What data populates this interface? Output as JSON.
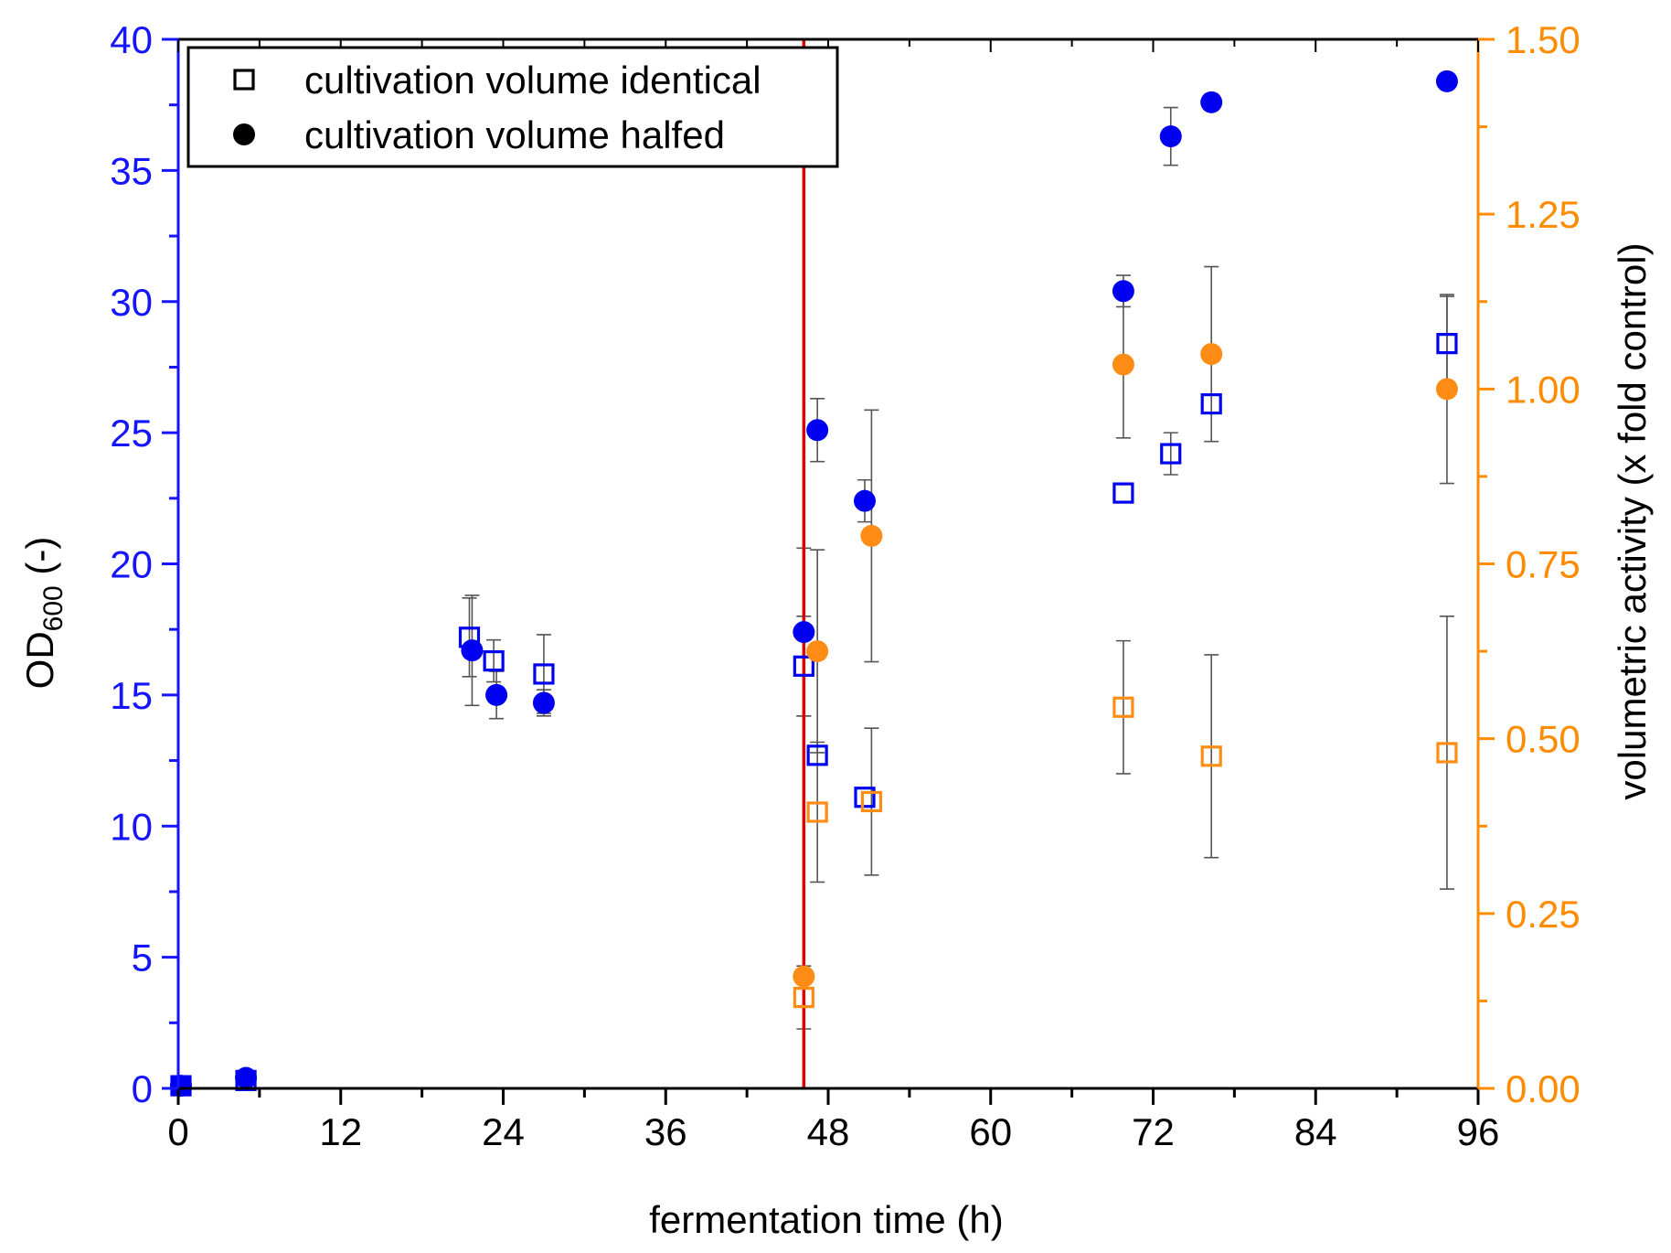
{
  "chart_data": {
    "type": "scatter",
    "xlabel": "fermentation time (h)",
    "ylabel_left": {
      "main": "OD",
      "sub": "600",
      "suffix": " (-)"
    },
    "ylabel_right": "volumetric activity (x fold control)",
    "xlim": [
      0,
      96
    ],
    "ylim_left": [
      0,
      40
    ],
    "ylim_right": [
      0,
      1.5
    ],
    "xticks": [
      "0",
      "12",
      "24",
      "36",
      "48",
      "60",
      "72",
      "84",
      "96"
    ],
    "yticks_left": [
      "0",
      "5",
      "10",
      "15",
      "20",
      "25",
      "30",
      "35",
      "40"
    ],
    "yticks_right": [
      "0.00",
      "0.25",
      "0.50",
      "0.75",
      "1.00",
      "1.25",
      "1.50"
    ],
    "vline_x": 46.2,
    "legend": [
      {
        "marker": "square-open",
        "label": "cultivation volume identical"
      },
      {
        "marker": "circle-filled",
        "label": "cultivation volume halfed"
      }
    ],
    "colors": {
      "od_axis": "#1414ff",
      "activity_axis": "#ff8c00",
      "od_marker": "#0000f0",
      "activity_marker": "#ff8c14",
      "vline": "#e00000",
      "errorbar": "#555555",
      "frame": "#000000"
    },
    "series": [
      {
        "name": "OD600 cultivation volume identical",
        "axis": "left",
        "marker": "square-open",
        "color": "#0000f0",
        "points": [
          {
            "x": 0.2,
            "y": 0.1,
            "err": 0
          },
          {
            "x": 5,
            "y": 0.3,
            "err": 0
          },
          {
            "x": 21.5,
            "y": 17.2,
            "err": 1.5
          },
          {
            "x": 23.3,
            "y": 16.3,
            "err": 0.8
          },
          {
            "x": 27,
            "y": 15.8,
            "err": 1.5
          },
          {
            "x": 46.2,
            "y": 16.1,
            "err": 1.9
          },
          {
            "x": 47.2,
            "y": 12.7,
            "err": 0
          },
          {
            "x": 50.7,
            "y": 11.1,
            "err": 0
          },
          {
            "x": 69.8,
            "y": 22.7,
            "err": 0
          },
          {
            "x": 73.3,
            "y": 24.2,
            "err": 0.8
          },
          {
            "x": 76.3,
            "y": 26.1,
            "err": 0
          },
          {
            "x": 93.7,
            "y": 28.4,
            "err": 1.8
          }
        ]
      },
      {
        "name": "OD600 cultivation volume halfed",
        "axis": "left",
        "marker": "circle-filled",
        "color": "#0000f0",
        "points": [
          {
            "x": 0.2,
            "y": 0.1,
            "err": 0
          },
          {
            "x": 5,
            "y": 0.4,
            "err": 0
          },
          {
            "x": 21.7,
            "y": 16.7,
            "err": 2.1
          },
          {
            "x": 23.5,
            "y": 15.0,
            "err": 0.9
          },
          {
            "x": 27,
            "y": 14.7,
            "err": 0.5
          },
          {
            "x": 46.2,
            "y": 17.4,
            "err": 3.2
          },
          {
            "x": 47.2,
            "y": 25.1,
            "err": 1.2
          },
          {
            "x": 50.7,
            "y": 22.4,
            "err": 0.8
          },
          {
            "x": 69.8,
            "y": 30.4,
            "err": 0.6
          },
          {
            "x": 73.3,
            "y": 36.3,
            "err": 1.1
          },
          {
            "x": 76.3,
            "y": 37.6,
            "err": 0.3
          },
          {
            "x": 93.7,
            "y": 38.4,
            "err": 0
          }
        ]
      },
      {
        "name": "Activity cultivation volume identical",
        "axis": "right",
        "marker": "square-open",
        "color": "#ff8c14",
        "points": [
          {
            "x": 46.2,
            "y": 0.13,
            "err": 0.045
          },
          {
            "x": 47.2,
            "y": 0.395,
            "err": 0.1
          },
          {
            "x": 51.2,
            "y": 0.41,
            "err": 0.105
          },
          {
            "x": 69.8,
            "y": 0.545,
            "err": 0.095
          },
          {
            "x": 76.3,
            "y": 0.475,
            "err": 0.145
          },
          {
            "x": 93.7,
            "y": 0.48,
            "err": 0.195
          }
        ]
      },
      {
        "name": "Activity cultivation volume halfed",
        "axis": "right",
        "marker": "circle-filled",
        "color": "#ff8c14",
        "points": [
          {
            "x": 46.2,
            "y": 0.16,
            "err": 0
          },
          {
            "x": 47.2,
            "y": 0.625,
            "err": 0.145
          },
          {
            "x": 51.2,
            "y": 0.79,
            "err": 0.18
          },
          {
            "x": 69.8,
            "y": 1.035,
            "err": 0.105
          },
          {
            "x": 76.3,
            "y": 1.05,
            "err": 0.125
          },
          {
            "x": 93.7,
            "y": 1.0,
            "err": 0.135
          }
        ]
      }
    ]
  }
}
